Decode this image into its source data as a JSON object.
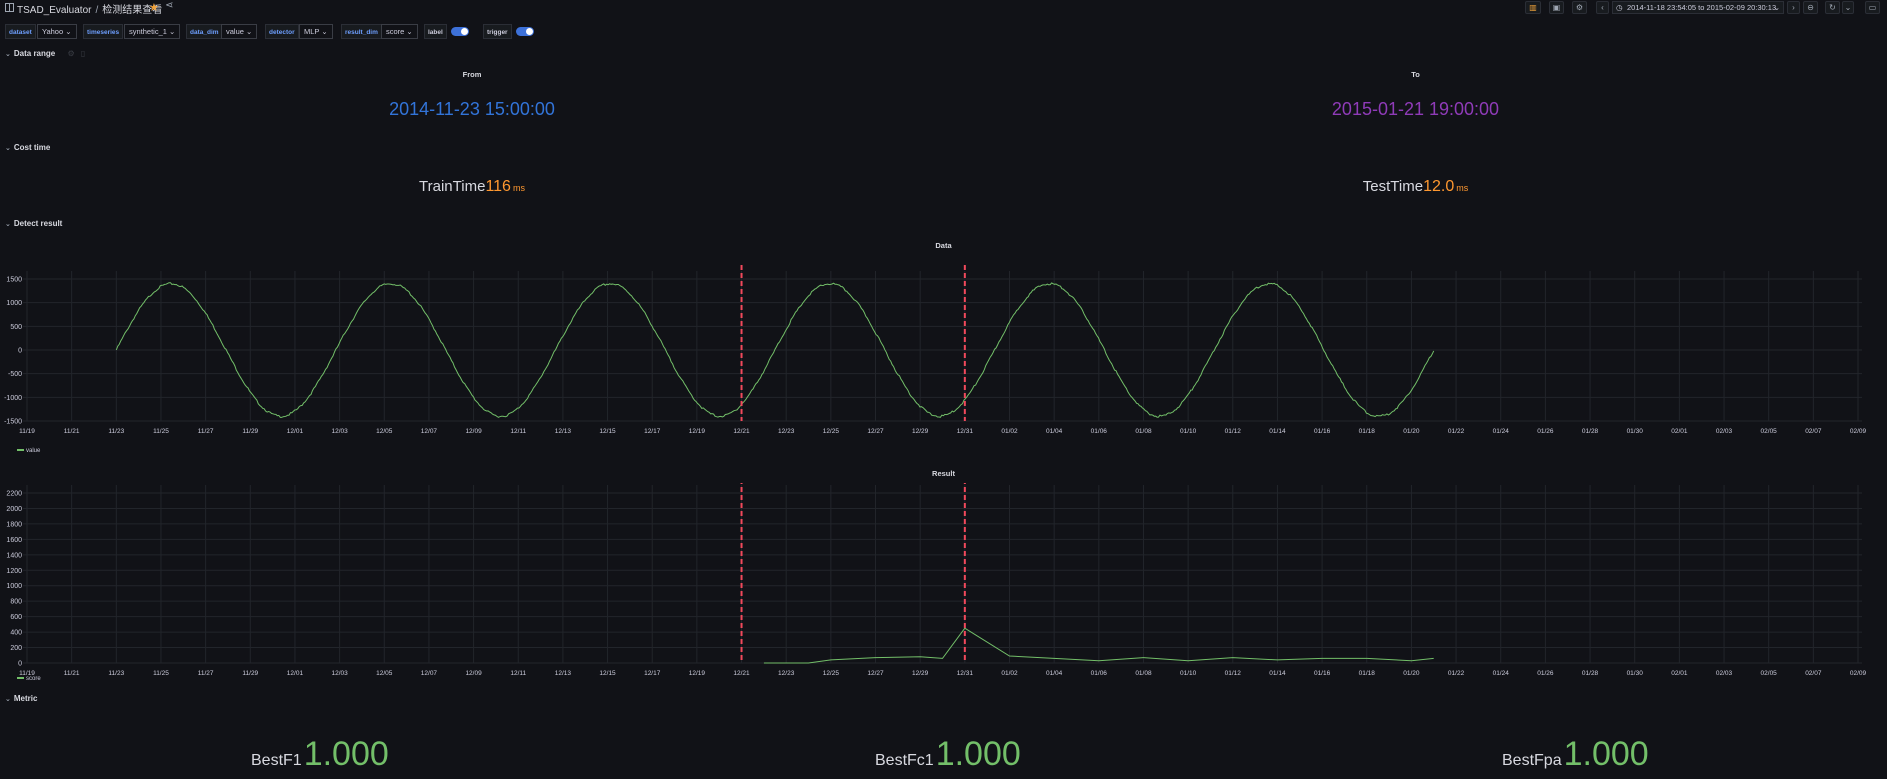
{
  "header": {
    "folder": "TSAD_Evaluator",
    "title": "检测结果查看",
    "time_range": "2014-11-18 23:54:05 to 2015-02-09 20:30:13"
  },
  "variables": [
    {
      "label": "dataset",
      "value": "Yahoo"
    },
    {
      "label": "timeseries",
      "value": "synthetic_1"
    },
    {
      "label": "data_dim",
      "value": "value"
    },
    {
      "label": "detector",
      "value": "MLP"
    },
    {
      "label": "result_dim",
      "value": "score"
    },
    {
      "label": "label",
      "toggle": true
    },
    {
      "label": "trigger",
      "toggle": true
    }
  ],
  "rows": {
    "data_range": "Data range",
    "cost_time": "Cost time",
    "detect_result": "Detect result",
    "metric": "Metric"
  },
  "data_range": {
    "from_label": "From",
    "from_value": "2014-11-23 15:00:00",
    "to_label": "To",
    "to_value": "2015-01-21 19:00:00",
    "from_color": "#3274d9",
    "to_color": "#8f3bb8"
  },
  "cost_time": {
    "train_label": "TrainTime",
    "train_value": "116",
    "train_unit": "ms",
    "test_label": "TestTime",
    "test_value": "12.0",
    "test_unit": "ms"
  },
  "metrics": {
    "f1_label": "BestF1",
    "f1_value": "1.000",
    "fc1_label": "BestFc1",
    "fc1_value": "1.000",
    "fpa_label": "BestFpa",
    "fpa_value": "1.000"
  },
  "chart_data": [
    {
      "type": "line",
      "title": "Data",
      "series": [
        {
          "name": "value",
          "color": "#73bf69",
          "x_start": "2014-11-23",
          "x_end": "2015-01-21",
          "x": [
            "11/23",
            "11/25",
            "11/27",
            "11/29",
            "12/01",
            "12/03",
            "12/05",
            "12/07",
            "12/09",
            "12/11",
            "12/13",
            "12/15",
            "12/17",
            "12/19",
            "12/21",
            "12/23",
            "12/25",
            "12/27",
            "12/29",
            "12/31",
            "01/02",
            "01/04",
            "01/06",
            "01/08",
            "01/10",
            "01/12",
            "01/14",
            "01/16",
            "01/18",
            "01/20",
            "01/21"
          ],
          "values": [
            0,
            1370,
            1060,
            -1000,
            -1410,
            -510,
            1300,
            1150,
            -600,
            -1400,
            -200,
            1440,
            600,
            -1100,
            -1400,
            900,
            1410,
            300,
            -1350,
            -1380,
            280,
            1440,
            -100,
            -1300,
            -1380,
            600,
            1410,
            700,
            -1350,
            -1300,
            0
          ]
        }
      ],
      "x_ticks": [
        "11/19",
        "11/21",
        "11/23",
        "11/25",
        "11/27",
        "11/29",
        "12/01",
        "12/03",
        "12/05",
        "12/07",
        "12/09",
        "12/11",
        "12/13",
        "12/15",
        "12/17",
        "12/19",
        "12/21",
        "12/23",
        "12/25",
        "12/27",
        "12/29",
        "12/31",
        "01/02",
        "01/04",
        "01/06",
        "01/08",
        "01/10",
        "01/12",
        "01/14",
        "01/16",
        "01/18",
        "01/20",
        "01/22",
        "01/24",
        "01/26",
        "01/28",
        "01/30",
        "02/01",
        "02/03",
        "02/05",
        "02/07",
        "02/09"
      ],
      "y_ticks": [
        "1500",
        "1000",
        "500",
        "0",
        "-500",
        "-1000",
        "-1500"
      ],
      "ylim": [
        -1500,
        1500
      ],
      "annotations": [
        "12/21",
        "12/31"
      ],
      "annotation_color": "#f2495c",
      "legend": "bottom-left"
    },
    {
      "type": "line",
      "title": "Result",
      "series": [
        {
          "name": "score",
          "color": "#73bf69",
          "x": [
            "12/22",
            "12/24",
            "12/25",
            "12/27",
            "12/29",
            "12/30",
            "12/31",
            "01/01",
            "01/02",
            "01/04",
            "01/06",
            "01/08",
            "01/10",
            "01/12",
            "01/14",
            "01/16",
            "01/18",
            "01/20",
            "01/21"
          ],
          "values": [
            0,
            0,
            40,
            70,
            80,
            60,
            450,
            50,
            90,
            60,
            30,
            70,
            30,
            70,
            40,
            60,
            60,
            30,
            60
          ]
        }
      ],
      "x_ticks": [
        "11/19",
        "11/21",
        "11/23",
        "11/25",
        "11/27",
        "11/29",
        "12/01",
        "12/03",
        "12/05",
        "12/07",
        "12/09",
        "12/11",
        "12/13",
        "12/15",
        "12/17",
        "12/19",
        "12/21",
        "12/23",
        "12/25",
        "12/27",
        "12/29",
        "12/31",
        "01/02",
        "01/04",
        "01/06",
        "01/08",
        "01/10",
        "01/12",
        "01/14",
        "01/16",
        "01/18",
        "01/20",
        "01/22",
        "01/24",
        "01/26",
        "01/28",
        "01/30",
        "02/01",
        "02/03",
        "02/05",
        "02/07",
        "02/09"
      ],
      "y_ticks": [
        "2200",
        "2000",
        "1800",
        "1600",
        "1400",
        "1200",
        "1000",
        "800",
        "600",
        "400",
        "200",
        "0"
      ],
      "ylim": [
        0,
        2200
      ],
      "annotations": [
        "12/21",
        "12/31"
      ],
      "annotation_color": "#f2495c",
      "legend": "bottom-left"
    }
  ]
}
